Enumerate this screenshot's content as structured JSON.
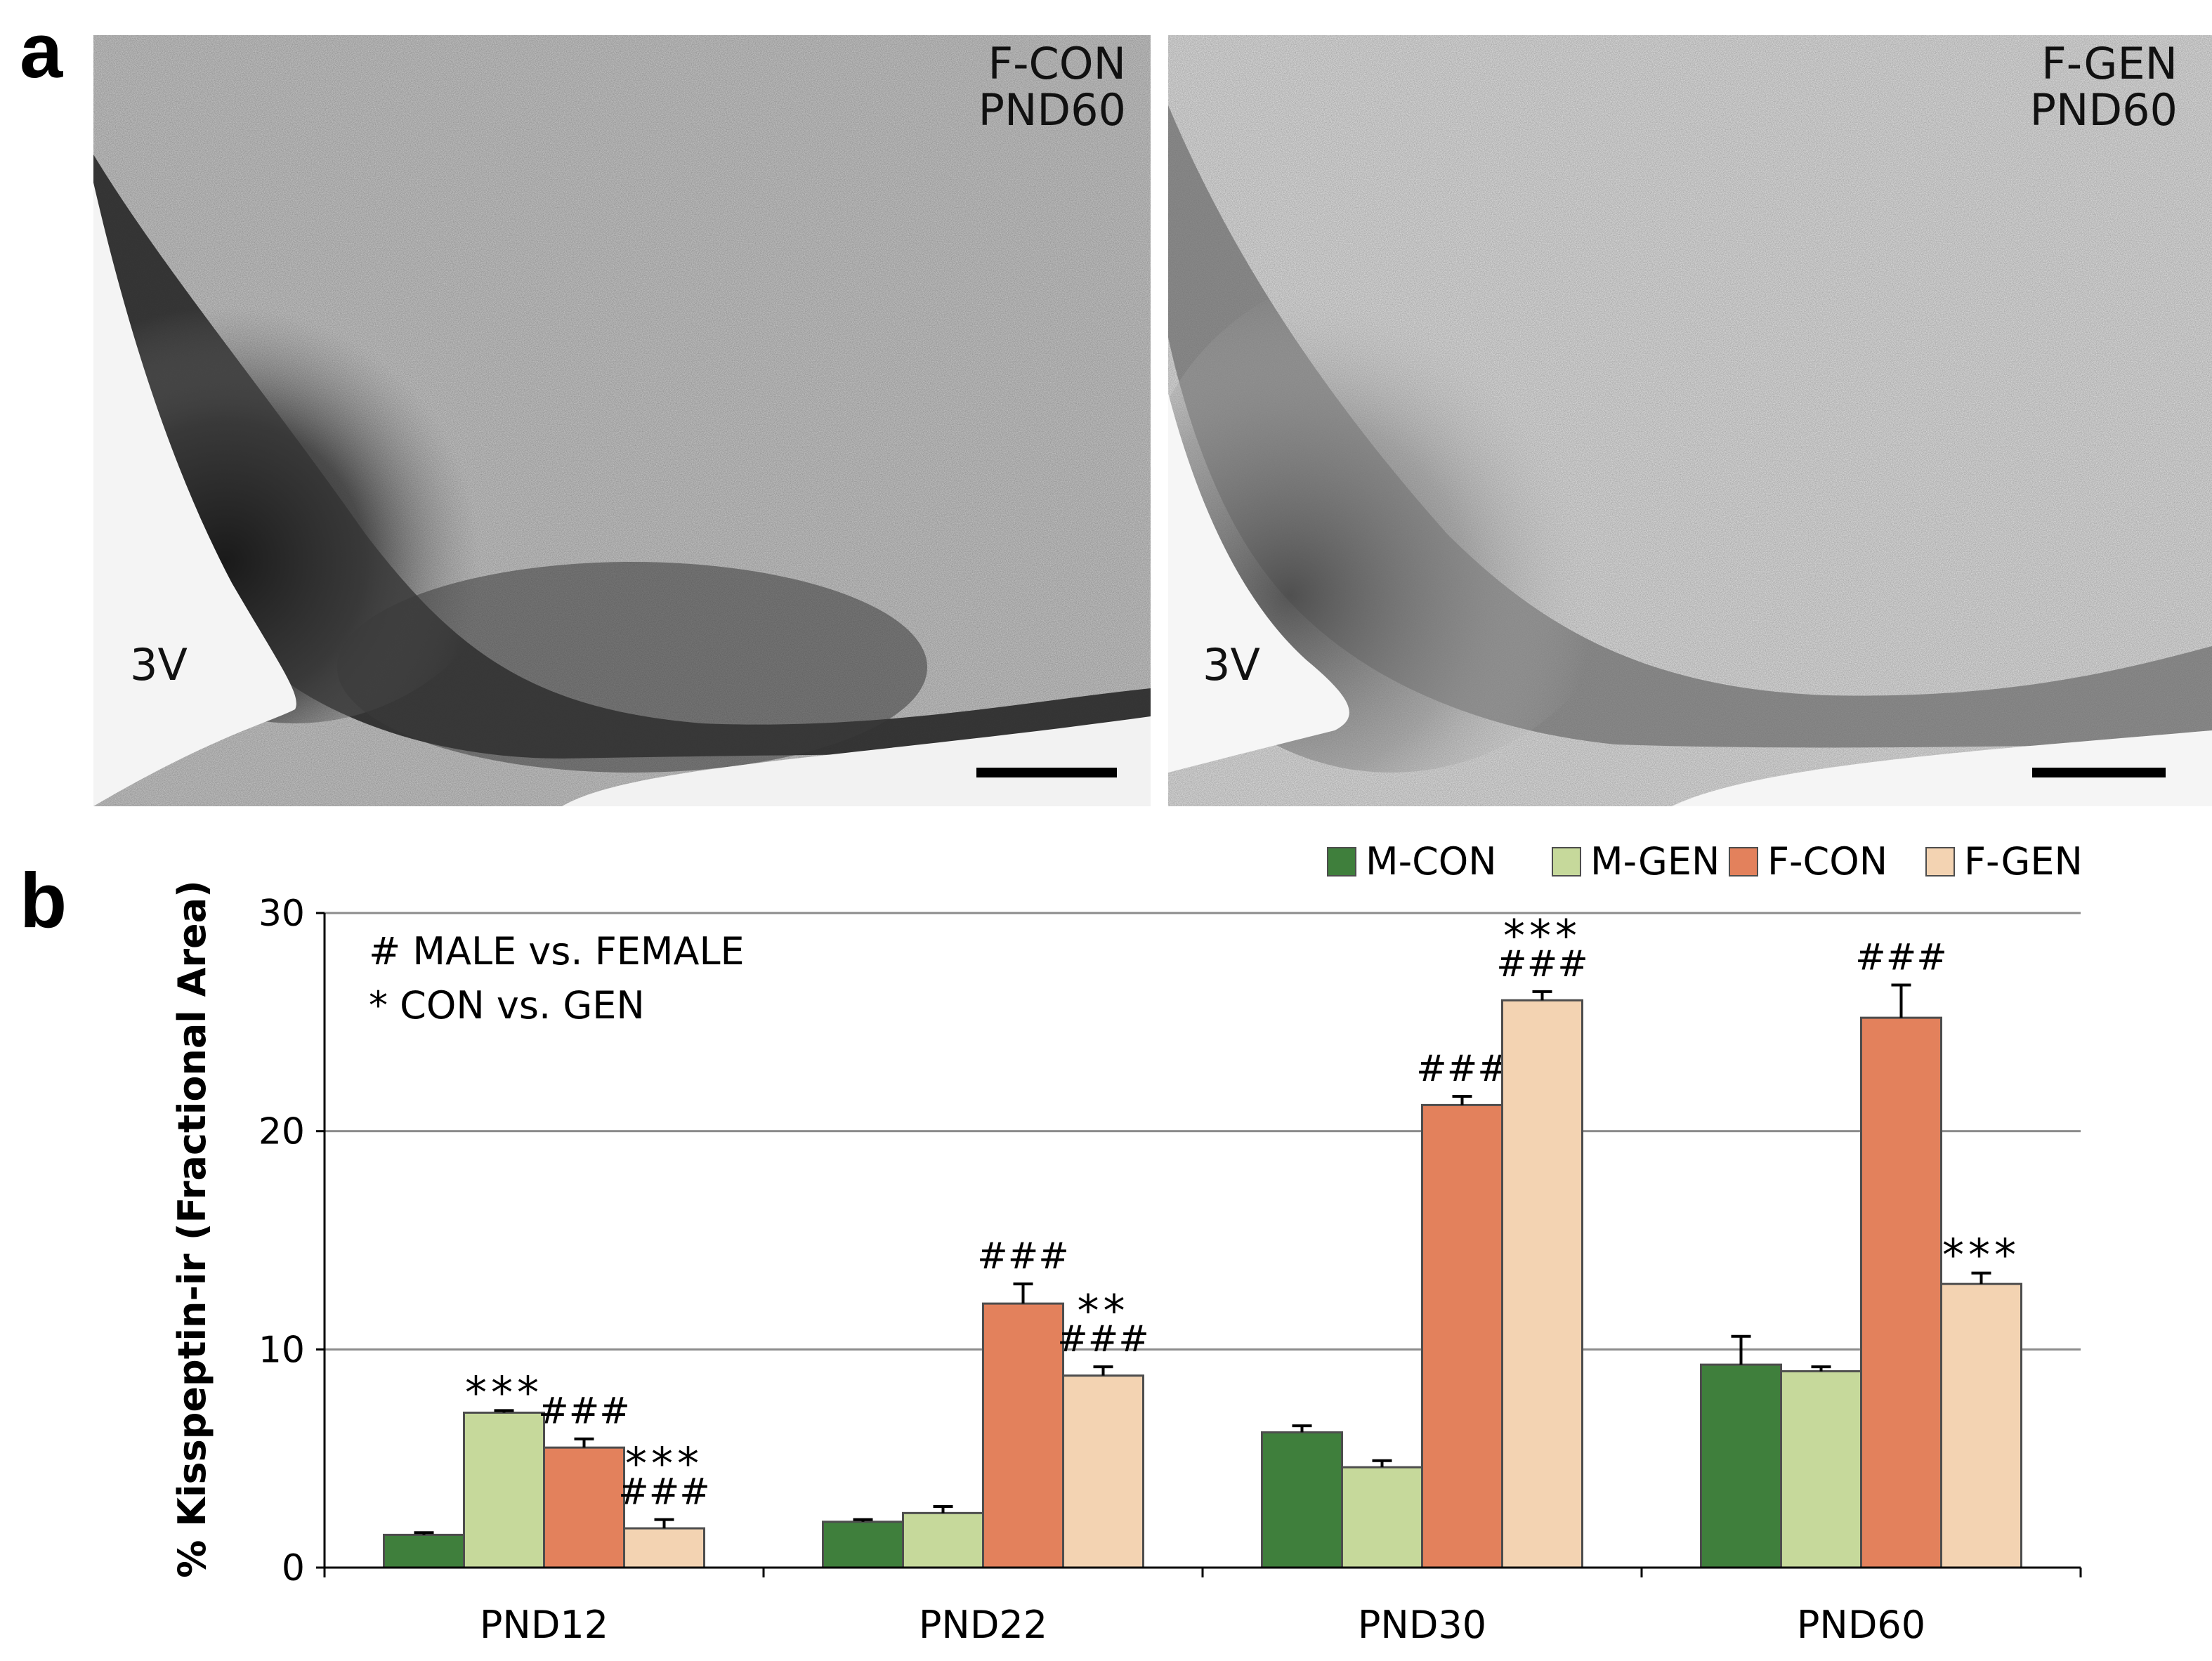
{
  "panel_a": {
    "letter": "a",
    "images": [
      {
        "label_line1": "F-CON",
        "label_line2": "PND60",
        "ventricle": "3V"
      },
      {
        "label_line1": "F-GEN",
        "label_line2": "PND60",
        "ventricle": "3V"
      }
    ]
  },
  "panel_b": {
    "letter": "b",
    "annotations": [
      "# MALE vs. FEMALE",
      "* CON vs. GEN"
    ]
  },
  "colors": {
    "M-CON": "#3f7f3c",
    "M-GEN": "#c6d99b",
    "F-CON": "#e3815c",
    "F-GEN": "#f3d3b2",
    "gridline": "#8c8c8c",
    "bar_outline": "#4d4d4d"
  },
  "chart_data": {
    "type": "bar",
    "categories": [
      "PND12",
      "PND22",
      "PND30",
      "PND60"
    ],
    "ylabel": "% Kisspeptin-ir (Fractional Area)",
    "ylim": [
      0,
      30
    ],
    "yticks": [
      0,
      10,
      20,
      30
    ],
    "grid": true,
    "legend_position": "top-right",
    "series": [
      {
        "name": "M-CON",
        "values": [
          1.5,
          2.1,
          6.2,
          9.3
        ],
        "errors": [
          0.1,
          0.1,
          0.3,
          1.3
        ],
        "labels": [
          "",
          "",
          "",
          ""
        ]
      },
      {
        "name": "M-GEN",
        "values": [
          7.1,
          2.5,
          4.6,
          9.0
        ],
        "errors": [
          0.1,
          0.3,
          0.3,
          0.2
        ],
        "labels": [
          "***",
          "",
          "",
          ""
        ]
      },
      {
        "name": "F-CON",
        "values": [
          5.5,
          12.1,
          21.2,
          25.2
        ],
        "errors": [
          0.4,
          0.9,
          0.4,
          1.5
        ],
        "labels": [
          "###",
          "###",
          "###",
          "###"
        ]
      },
      {
        "name": "F-GEN",
        "values": [
          1.8,
          8.8,
          26.0,
          13.0
        ],
        "errors": [
          0.4,
          0.4,
          0.4,
          0.5
        ],
        "labels": [
          "***\n###",
          "**\n###",
          "***\n###",
          "***"
        ]
      }
    ]
  }
}
